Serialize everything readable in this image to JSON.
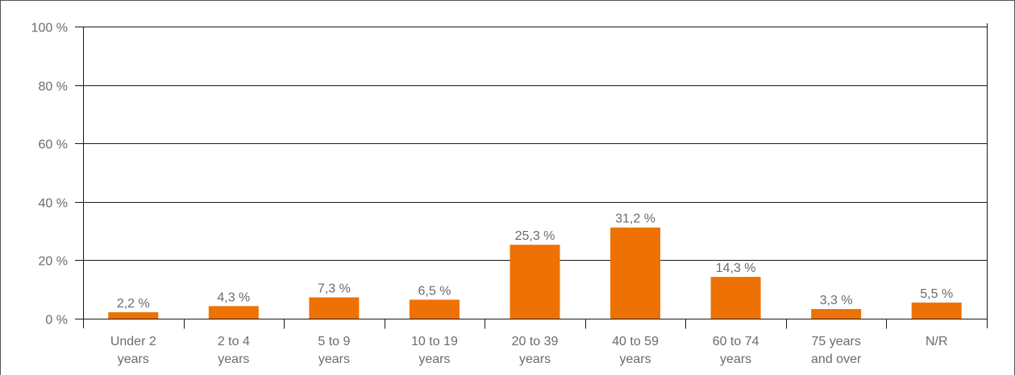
{
  "chart_data": {
    "type": "bar",
    "title": "",
    "xlabel": "",
    "ylabel": "",
    "categories": [
      [
        "Under 2",
        "years"
      ],
      [
        "2 to 4",
        "years"
      ],
      [
        "5 to 9",
        "years"
      ],
      [
        "10 to 19",
        "years"
      ],
      [
        "20 to 39",
        "years"
      ],
      [
        "40 to 59",
        "years"
      ],
      [
        "60 to 74",
        "years"
      ],
      [
        "75 years",
        "and over"
      ],
      [
        "N/R"
      ]
    ],
    "values": [
      2.2,
      4.3,
      7.3,
      6.5,
      25.3,
      31.2,
      14.3,
      3.3,
      5.5
    ],
    "data_labels": [
      "2,2 %",
      "4,3 %",
      "7,3 %",
      "6,5 %",
      "25,3 %",
      "31,2 %",
      "14,3 %",
      "3,3 %",
      "5,5 %"
    ],
    "ylim": [
      0,
      100
    ],
    "yticks": [
      0,
      20,
      40,
      60,
      80,
      100
    ],
    "ytick_labels": [
      "0 %",
      "20 %",
      "40 %",
      "60 %",
      "80 %",
      "100 %"
    ],
    "grid": true,
    "legend": "none",
    "colors": {
      "bar": "#ee7203",
      "grid": "#1a1a1a",
      "text": "#6b6b6b",
      "frame": "#555555"
    }
  }
}
